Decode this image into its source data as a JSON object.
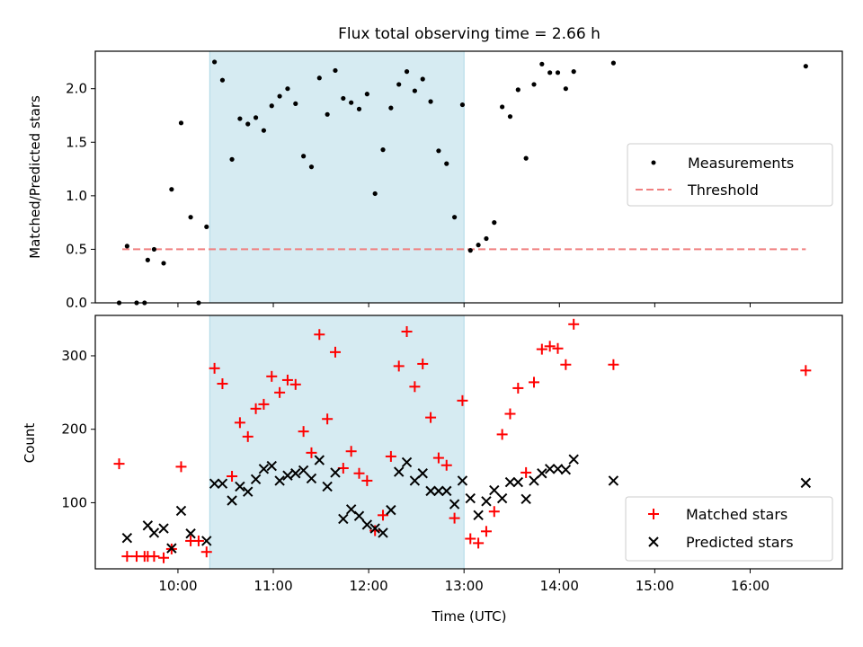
{
  "title": "Flux total observing time = 2.66 h",
  "colors": {
    "span": "#add8e6",
    "threshold": "#f08080",
    "measurements": "#000000",
    "matched": "#ff0000",
    "predicted": "#000000"
  },
  "chart_data": [
    {
      "type": "scatter",
      "ylabel": "Matched/Predicted stars",
      "xlim": [
        "09:08",
        "16:58"
      ],
      "ylim": [
        0,
        2.35
      ],
      "yticks": [
        "0.0",
        "0.5",
        "1.0",
        "1.5",
        "2.0"
      ],
      "ytick_values": [
        0,
        0.5,
        1.0,
        1.5,
        2.0
      ],
      "highlight_span": [
        "10:20",
        "13:00"
      ],
      "legend": [
        "Measurements",
        "Threshold"
      ],
      "legend_position": "center-right",
      "threshold": {
        "name": "Threshold",
        "value": 0.5,
        "x": [
          "09:25",
          "16:35"
        ]
      },
      "series": [
        {
          "name": "Measurements",
          "points": [
            [
              "09:23",
              0.0
            ],
            [
              "09:28",
              0.53
            ],
            [
              "09:34",
              0.0
            ],
            [
              "09:39",
              0.0
            ],
            [
              "09:41",
              0.4
            ],
            [
              "09:45",
              0.5
            ],
            [
              "09:51",
              0.37
            ],
            [
              "09:56",
              1.06
            ],
            [
              "10:02",
              1.68
            ],
            [
              "10:08",
              0.8
            ],
            [
              "10:13",
              0.0
            ],
            [
              "10:18",
              0.71
            ],
            [
              "10:23",
              2.25
            ],
            [
              "10:28",
              2.08
            ],
            [
              "10:34",
              1.34
            ],
            [
              "10:39",
              1.72
            ],
            [
              "10:44",
              1.67
            ],
            [
              "10:49",
              1.73
            ],
            [
              "10:54",
              1.61
            ],
            [
              "10:59",
              1.84
            ],
            [
              "11:04",
              1.93
            ],
            [
              "11:09",
              2.0
            ],
            [
              "11:14",
              1.86
            ],
            [
              "11:19",
              1.37
            ],
            [
              "11:24",
              1.27
            ],
            [
              "11:29",
              2.1
            ],
            [
              "11:34",
              1.76
            ],
            [
              "11:39",
              2.17
            ],
            [
              "11:44",
              1.91
            ],
            [
              "11:49",
              1.87
            ],
            [
              "11:54",
              1.81
            ],
            [
              "11:59",
              1.95
            ],
            [
              "12:04",
              1.02
            ],
            [
              "12:09",
              1.43
            ],
            [
              "12:14",
              1.82
            ],
            [
              "12:19",
              2.04
            ],
            [
              "12:24",
              2.16
            ],
            [
              "12:29",
              1.98
            ],
            [
              "12:34",
              2.09
            ],
            [
              "12:39",
              1.88
            ],
            [
              "12:44",
              1.42
            ],
            [
              "12:49",
              1.3
            ],
            [
              "12:54",
              0.8
            ],
            [
              "12:59",
              1.85
            ],
            [
              "13:04",
              0.49
            ],
            [
              "13:09",
              0.54
            ],
            [
              "13:14",
              0.6
            ],
            [
              "13:19",
              0.75
            ],
            [
              "13:24",
              1.83
            ],
            [
              "13:29",
              1.74
            ],
            [
              "13:34",
              1.99
            ],
            [
              "13:39",
              1.35
            ],
            [
              "13:44",
              2.04
            ],
            [
              "13:49",
              2.23
            ],
            [
              "13:54",
              2.15
            ],
            [
              "13:59",
              2.15
            ],
            [
              "14:04",
              2.0
            ],
            [
              "14:09",
              2.16
            ],
            [
              "14:34",
              2.24
            ],
            [
              "16:35",
              2.21
            ]
          ]
        }
      ]
    },
    {
      "type": "scatter",
      "xlabel": "Time (UTC)",
      "ylabel": "Count",
      "xlim": [
        "09:08",
        "16:58"
      ],
      "ylim": [
        10,
        355
      ],
      "xticks": [
        "10:00",
        "11:00",
        "12:00",
        "13:00",
        "14:00",
        "15:00",
        "16:00"
      ],
      "yticks": [
        "100",
        "200",
        "300"
      ],
      "ytick_values": [
        100,
        200,
        300
      ],
      "highlight_span": [
        "10:20",
        "13:00"
      ],
      "legend": [
        "Matched stars",
        "Predicted stars"
      ],
      "legend_position": "lower-right",
      "series": [
        {
          "name": "Matched stars",
          "marker": "+",
          "points": [
            [
              "09:23",
              153
            ],
            [
              "09:28",
              27
            ],
            [
              "09:34",
              27
            ],
            [
              "09:39",
              27
            ],
            [
              "09:41",
              27
            ],
            [
              "09:45",
              27
            ],
            [
              "09:51",
              25
            ],
            [
              "09:56",
              37
            ],
            [
              "10:02",
              149
            ],
            [
              "10:08",
              48
            ],
            [
              "10:13",
              48
            ],
            [
              "10:18",
              33
            ],
            [
              "10:23",
              283
            ],
            [
              "10:28",
              262
            ],
            [
              "10:34",
              136
            ],
            [
              "10:39",
              209
            ],
            [
              "10:44",
              190
            ],
            [
              "10:49",
              228
            ],
            [
              "10:54",
              234
            ],
            [
              "10:59",
              272
            ],
            [
              "11:04",
              250
            ],
            [
              "11:09",
              267
            ],
            [
              "11:14",
              261
            ],
            [
              "11:19",
              197
            ],
            [
              "11:24",
              168
            ],
            [
              "11:29",
              329
            ],
            [
              "11:34",
              214
            ],
            [
              "11:39",
              305
            ],
            [
              "11:44",
              147
            ],
            [
              "11:49",
              170
            ],
            [
              "11:54",
              140
            ],
            [
              "11:59",
              130
            ],
            [
              "12:04",
              62
            ],
            [
              "12:09",
              83
            ],
            [
              "12:14",
              163
            ],
            [
              "12:19",
              286
            ],
            [
              "12:24",
              333
            ],
            [
              "12:29",
              258
            ],
            [
              "12:34",
              289
            ],
            [
              "12:39",
              216
            ],
            [
              "12:44",
              161
            ],
            [
              "12:49",
              151
            ],
            [
              "12:54",
              79
            ],
            [
              "12:59",
              239
            ],
            [
              "13:04",
              51
            ],
            [
              "13:09",
              45
            ],
            [
              "13:14",
              61
            ],
            [
              "13:19",
              88
            ],
            [
              "13:24",
              193
            ],
            [
              "13:29",
              221
            ],
            [
              "13:34",
              256
            ],
            [
              "13:39",
              141
            ],
            [
              "13:44",
              264
            ],
            [
              "13:49",
              309
            ],
            [
              "13:54",
              313
            ],
            [
              "13:59",
              310
            ],
            [
              "14:04",
              288
            ],
            [
              "14:09",
              343
            ],
            [
              "14:34",
              288
            ],
            [
              "16:35",
              280
            ]
          ]
        },
        {
          "name": "Predicted stars",
          "marker": "x",
          "points": [
            [
              "09:28",
              52
            ],
            [
              "09:41",
              69
            ],
            [
              "09:45",
              59
            ],
            [
              "09:51",
              65
            ],
            [
              "09:56",
              38
            ],
            [
              "10:02",
              89
            ],
            [
              "10:08",
              58
            ],
            [
              "10:18",
              48
            ],
            [
              "10:23",
              126
            ],
            [
              "10:28",
              126
            ],
            [
              "10:34",
              103
            ],
            [
              "10:39",
              122
            ],
            [
              "10:44",
              115
            ],
            [
              "10:49",
              132
            ],
            [
              "10:54",
              146
            ],
            [
              "10:59",
              150
            ],
            [
              "11:04",
              130
            ],
            [
              "11:09",
              137
            ],
            [
              "11:14",
              140
            ],
            [
              "11:19",
              144
            ],
            [
              "11:24",
              133
            ],
            [
              "11:29",
              158
            ],
            [
              "11:34",
              122
            ],
            [
              "11:39",
              141
            ],
            [
              "11:44",
              78
            ],
            [
              "11:49",
              91
            ],
            [
              "11:54",
              82
            ],
            [
              "11:59",
              70
            ],
            [
              "12:04",
              65
            ],
            [
              "12:09",
              59
            ],
            [
              "12:14",
              90
            ],
            [
              "12:19",
              142
            ],
            [
              "12:24",
              155
            ],
            [
              "12:29",
              130
            ],
            [
              "12:34",
              140
            ],
            [
              "12:39",
              116
            ],
            [
              "12:44",
              116
            ],
            [
              "12:49",
              116
            ],
            [
              "12:54",
              98
            ],
            [
              "12:59",
              130
            ],
            [
              "13:04",
              106
            ],
            [
              "13:09",
              83
            ],
            [
              "13:14",
              102
            ],
            [
              "13:19",
              117
            ],
            [
              "13:24",
              106
            ],
            [
              "13:29",
              128
            ],
            [
              "13:34",
              128
            ],
            [
              "13:39",
              105
            ],
            [
              "13:44",
              130
            ],
            [
              "13:49",
              140
            ],
            [
              "13:54",
              146
            ],
            [
              "13:59",
              146
            ],
            [
              "14:04",
              145
            ],
            [
              "14:09",
              159
            ],
            [
              "14:34",
              130
            ],
            [
              "16:35",
              127
            ]
          ]
        }
      ]
    }
  ]
}
